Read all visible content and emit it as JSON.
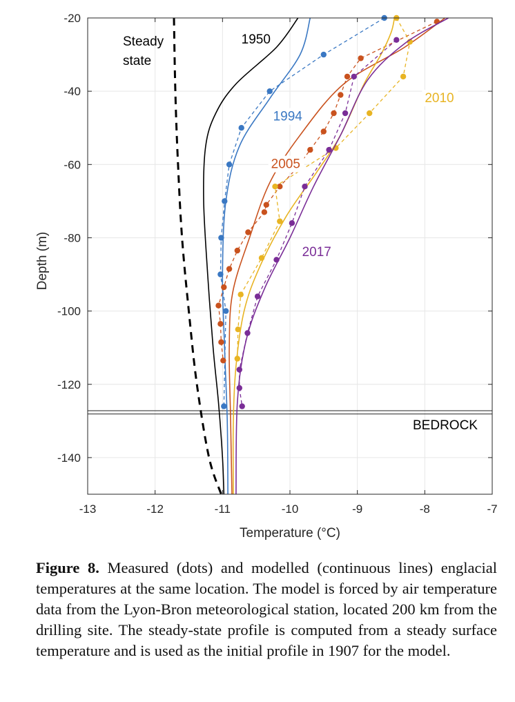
{
  "chart_data": {
    "type": "line",
    "xlabel": "Temperature (°C)",
    "ylabel": "Depth (m)",
    "xlim": [
      -13,
      -7
    ],
    "ylim": [
      -150,
      -20
    ],
    "xticks": [
      -13,
      -12,
      -11,
      -10,
      -9,
      -8,
      -7
    ],
    "yticks": [
      -20,
      -40,
      -60,
      -80,
      -100,
      -120,
      -140
    ],
    "grid": true,
    "colors": {
      "steady": "#000000",
      "1950": "#000000",
      "1994": "#3a78c3",
      "2005": "#c9521e",
      "2010": "#e8b423",
      "2017": "#7a2d97"
    },
    "annotations": {
      "steady_line1": "Steady",
      "steady_line2": "state",
      "bedrock": "BEDROCK"
    },
    "bedrock_depth": [
      -127.2,
      -128.1
    ],
    "series": [
      {
        "name": "Steady state",
        "kind": "model-dashed",
        "color": "#000000",
        "points": [
          [
            -11.72,
            -20
          ],
          [
            -11.7,
            -40
          ],
          [
            -11.66,
            -60
          ],
          [
            -11.6,
            -80
          ],
          [
            -11.5,
            -100
          ],
          [
            -11.38,
            -120
          ],
          [
            -11.2,
            -140
          ],
          [
            -11.02,
            -150
          ]
        ]
      },
      {
        "name": "1950",
        "kind": "model",
        "color": "#000000",
        "points": [
          [
            -9.88,
            -20
          ],
          [
            -10.2,
            -28
          ],
          [
            -10.8,
            -38
          ],
          [
            -11.1,
            -46
          ],
          [
            -11.25,
            -55
          ],
          [
            -11.28,
            -70
          ],
          [
            -11.22,
            -90
          ],
          [
            -11.14,
            -110
          ],
          [
            -11.06,
            -125
          ],
          [
            -11.0,
            -140
          ],
          [
            -10.98,
            -150
          ]
        ]
      },
      {
        "name": "1994",
        "kind": "model",
        "color": "#3a78c3",
        "points": [
          [
            -9.7,
            -20
          ],
          [
            -9.85,
            -30
          ],
          [
            -10.3,
            -42
          ],
          [
            -10.75,
            -55
          ],
          [
            -10.95,
            -70
          ],
          [
            -11.0,
            -90
          ],
          [
            -10.97,
            -110
          ],
          [
            -10.93,
            -130
          ],
          [
            -10.92,
            -150
          ]
        ]
      },
      {
        "name": "1994",
        "kind": "measured",
        "color": "#3a78c3",
        "points": [
          [
            -8.6,
            -20
          ],
          [
            -9.5,
            -30
          ],
          [
            -10.3,
            -40
          ],
          [
            -10.72,
            -50
          ],
          [
            -10.9,
            -60
          ],
          [
            -10.97,
            -70
          ],
          [
            -11.02,
            -80
          ],
          [
            -11.03,
            -90
          ],
          [
            -10.95,
            -100
          ],
          [
            -10.98,
            -126
          ]
        ]
      },
      {
        "name": "2005",
        "kind": "model",
        "color": "#c9521e",
        "points": [
          [
            -7.7,
            -20
          ],
          [
            -8.3,
            -28
          ],
          [
            -9.2,
            -38
          ],
          [
            -9.85,
            -52
          ],
          [
            -10.3,
            -65
          ],
          [
            -10.6,
            -80
          ],
          [
            -10.85,
            -95
          ],
          [
            -10.9,
            -110
          ],
          [
            -10.88,
            -130
          ],
          [
            -10.86,
            -150
          ]
        ]
      },
      {
        "name": "2005",
        "kind": "measured",
        "color": "#c9521e",
        "points": [
          [
            -7.82,
            -21
          ],
          [
            -8.95,
            -31
          ],
          [
            -9.15,
            -36
          ],
          [
            -9.25,
            -41
          ],
          [
            -9.35,
            -46
          ],
          [
            -9.5,
            -51
          ],
          [
            -9.7,
            -56
          ],
          [
            -9.9,
            -61
          ],
          [
            -10.15,
            -66
          ],
          [
            -10.35,
            -71
          ],
          [
            -10.38,
            -73
          ],
          [
            -10.62,
            -78.5
          ],
          [
            -10.78,
            -83.5
          ],
          [
            -10.9,
            -88.5
          ],
          [
            -10.98,
            -93.5
          ],
          [
            -11.06,
            -98.5
          ],
          [
            -11.03,
            -103.5
          ],
          [
            -11.02,
            -108.5
          ],
          [
            -10.99,
            -113.5
          ]
        ]
      },
      {
        "name": "2010",
        "kind": "model",
        "color": "#e8b423",
        "points": [
          [
            -8.45,
            -20
          ],
          [
            -8.5,
            -24
          ],
          [
            -8.65,
            -30
          ],
          [
            -8.9,
            -38
          ],
          [
            -9.25,
            -52
          ],
          [
            -9.6,
            -62
          ],
          [
            -10.05,
            -74
          ],
          [
            -10.45,
            -88
          ],
          [
            -10.68,
            -100
          ],
          [
            -10.8,
            -115
          ],
          [
            -10.84,
            -130
          ],
          [
            -10.84,
            -150
          ]
        ]
      },
      {
        "name": "2010",
        "kind": "measured",
        "color": "#e8b423",
        "points": [
          [
            -8.42,
            -20
          ],
          [
            -8.22,
            -26.5
          ],
          [
            -8.32,
            -36
          ],
          [
            -8.82,
            -46
          ],
          [
            -9.32,
            -55.5
          ],
          [
            -10.15,
            -75.5
          ],
          [
            -10.42,
            -85.5
          ],
          [
            -10.73,
            -95.5
          ],
          [
            -10.77,
            -105
          ],
          [
            -10.78,
            -113
          ],
          [
            -10.22,
            -66
          ]
        ]
      },
      {
        "name": "2017",
        "kind": "model",
        "color": "#7a2d97",
        "points": [
          [
            -7.65,
            -20
          ],
          [
            -8.3,
            -27
          ],
          [
            -8.85,
            -37
          ],
          [
            -9.25,
            -52
          ],
          [
            -9.65,
            -66
          ],
          [
            -10.0,
            -80
          ],
          [
            -10.38,
            -94
          ],
          [
            -10.65,
            -108
          ],
          [
            -10.78,
            -125
          ],
          [
            -10.8,
            -150
          ]
        ]
      },
      {
        "name": "2017",
        "kind": "measured",
        "color": "#7a2d97",
        "points": [
          [
            -8.42,
            -26
          ],
          [
            -9.05,
            -36
          ],
          [
            -9.18,
            -46
          ],
          [
            -9.42,
            -56
          ],
          [
            -9.78,
            -66
          ],
          [
            -9.97,
            -76
          ],
          [
            -10.2,
            -86
          ],
          [
            -10.48,
            -96
          ],
          [
            -10.63,
            -106
          ],
          [
            -10.75,
            -116
          ],
          [
            -10.75,
            -121
          ],
          [
            -10.71,
            -126
          ]
        ]
      }
    ],
    "labels": [
      {
        "text": "1950",
        "color": "#000000",
        "x": -10.72,
        "y": -27
      },
      {
        "text": "1994",
        "color": "#3a78c3",
        "x": -10.25,
        "y": -48
      },
      {
        "text": "2005",
        "color": "#c9521e",
        "x": -10.28,
        "y": -61
      },
      {
        "text": "2010",
        "color": "#e8b423",
        "x": -8.0,
        "y": -43
      },
      {
        "text": "2017",
        "color": "#7a2d97",
        "x": -9.82,
        "y": -85
      }
    ]
  },
  "caption": {
    "label": "Figure 8.",
    "text": " Measured (dots) and modelled (continuous lines) englacial temperatures at the same location. The model is forced by air temperature data from the Lyon-Bron meteorological station, located 200 km from the drilling site. The steady-state profile is computed from a steady surface temperature and is used as the initial profile in 1907 for the model."
  }
}
